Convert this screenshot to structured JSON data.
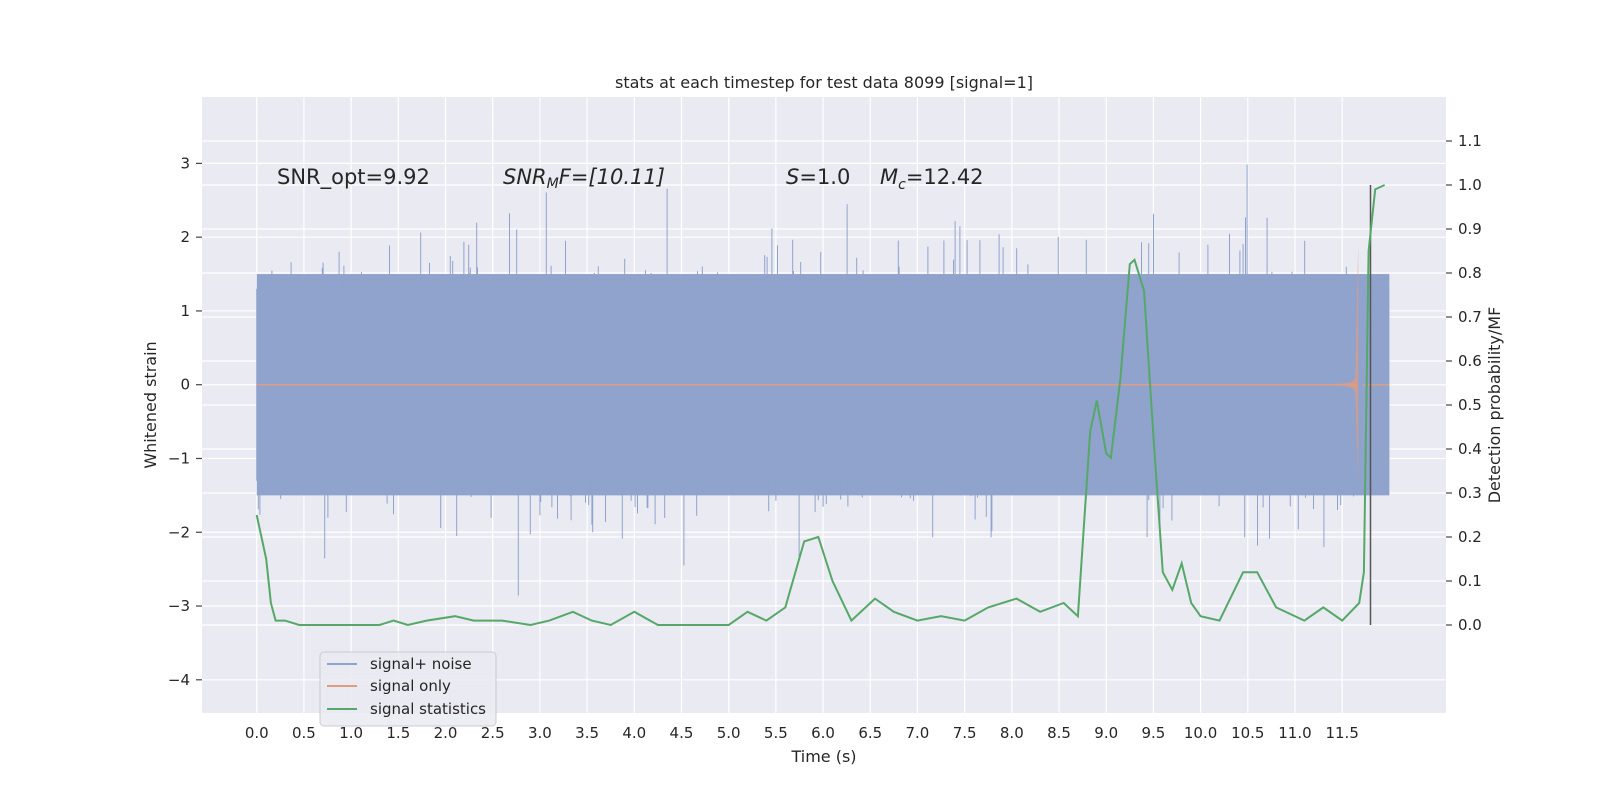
{
  "chart_data": {
    "type": "line",
    "title": "stats at each timestep for test data 8099 [signal=1]",
    "xlabel": "Time (s)",
    "ylabel": "Whitened strain",
    "ylabel_right": "Detection probability/MF",
    "xlim": [
      -0.58,
      12.6
    ],
    "ylim": [
      -4.45,
      3.9
    ],
    "ylim_right": [
      -0.2,
      1.2
    ],
    "x_ticks": [
      "0.0",
      "0.5",
      "1.0",
      "1.5",
      "2.0",
      "2.5",
      "3.0",
      "3.5",
      "4.0",
      "4.5",
      "5.0",
      "5.5",
      "6.0",
      "6.5",
      "7.0",
      "7.5",
      "8.0",
      "8.5",
      "9.0",
      "9.5",
      "10.0",
      "10.5",
      "11.0",
      "11.5"
    ],
    "y_ticks": [
      "3",
      "2",
      "1",
      "0",
      "−1",
      "−2",
      "−3",
      "−4"
    ],
    "y_ticks_right": [
      "1.1",
      "1.0",
      "0.9",
      "0.8",
      "0.7",
      "0.6",
      "0.5",
      "0.4",
      "0.3",
      "0.2",
      "0.1",
      "0.0"
    ],
    "grid": true,
    "legend_position": "lower-left",
    "annotations": {
      "snr_opt": "SNR_opt=9.92",
      "snr_mf_sym": "SNR",
      "snr_mf_sub": "M",
      "snr_mf_rest": "F=[10.11]",
      "s_sym": "S",
      "s_rest": "=1.0",
      "mc_sym": "M",
      "mc_sub": "c",
      "mc_rest": "=12.42"
    },
    "merger_time": 11.8,
    "series": [
      {
        "name": "signal+ noise",
        "color": "#8fa3cc",
        "t_range": [
          0,
          12.0
        ],
        "std": 0.78,
        "min": -3.9,
        "max": 3.57
      },
      {
        "name": "signal only",
        "color": "#e09c80",
        "t_range": [
          0,
          12.0
        ],
        "peak_time": 11.67,
        "peak_value": 1.9,
        "min_value": -1.3
      },
      {
        "name": "signal statistics",
        "color": "#55a868",
        "axis": "right",
        "x": [
          0.0,
          0.1,
          0.15,
          0.2,
          0.3,
          0.45,
          0.6,
          0.75,
          1.0,
          1.3,
          1.45,
          1.6,
          1.8,
          2.1,
          2.3,
          2.6,
          2.9,
          3.1,
          3.35,
          3.55,
          3.75,
          4.0,
          4.25,
          4.5,
          4.8,
          5.0,
          5.2,
          5.4,
          5.6,
          5.8,
          5.95,
          6.1,
          6.3,
          6.55,
          6.75,
          7.0,
          7.25,
          7.5,
          7.75,
          8.05,
          8.3,
          8.55,
          8.7,
          8.83,
          8.9,
          9.0,
          9.05,
          9.15,
          9.25,
          9.3,
          9.4,
          9.5,
          9.6,
          9.7,
          9.8,
          9.9,
          10.0,
          10.2,
          10.45,
          10.6,
          10.8,
          11.1,
          11.3,
          11.5,
          11.68,
          11.73,
          11.78,
          11.85,
          11.95
        ],
        "values": [
          0.25,
          0.15,
          0.05,
          0.01,
          0.01,
          0.0,
          0.0,
          0.0,
          0.0,
          0.0,
          0.01,
          0.0,
          0.01,
          0.02,
          0.01,
          0.01,
          0.0,
          0.01,
          0.03,
          0.01,
          0.0,
          0.03,
          0.0,
          0.0,
          0.0,
          0.0,
          0.03,
          0.01,
          0.04,
          0.19,
          0.2,
          0.1,
          0.01,
          0.06,
          0.03,
          0.01,
          0.02,
          0.01,
          0.04,
          0.06,
          0.03,
          0.05,
          0.02,
          0.44,
          0.51,
          0.39,
          0.38,
          0.56,
          0.82,
          0.83,
          0.76,
          0.43,
          0.12,
          0.08,
          0.14,
          0.05,
          0.02,
          0.01,
          0.12,
          0.12,
          0.04,
          0.01,
          0.04,
          0.01,
          0.05,
          0.12,
          0.85,
          0.99,
          1.0
        ]
      }
    ]
  }
}
